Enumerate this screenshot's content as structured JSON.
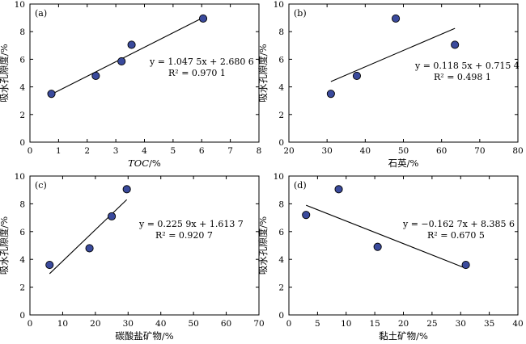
{
  "chart_data": [
    {
      "type": "scatter",
      "panel_label": "(a)",
      "xlabel": "TOC/%",
      "xlabel_italic_part": "TOC",
      "ylabel": "吸水孔隙度/%",
      "xlim": [
        0,
        8
      ],
      "ylim": [
        0,
        10
      ],
      "xticks": [
        0,
        1,
        2,
        3,
        4,
        5,
        6,
        7,
        8
      ],
      "yticks": [
        0,
        2,
        4,
        6,
        8,
        10
      ],
      "points": [
        [
          0.75,
          3.5
        ],
        [
          2.3,
          4.8
        ],
        [
          3.2,
          5.85
        ],
        [
          3.55,
          7.05
        ],
        [
          6.05,
          8.95
        ]
      ],
      "fit": {
        "slope": 1.0475,
        "intercept": 2.6806,
        "x_range": [
          0.75,
          6.05
        ]
      },
      "equation": "y = 1.047 5x + 2.680 6",
      "r2": "R² = 0.970 1"
    },
    {
      "type": "scatter",
      "panel_label": "(b)",
      "xlabel": "石英/%",
      "ylabel": "吸水孔隙度/%",
      "xlim": [
        20,
        80
      ],
      "ylim": [
        0,
        10
      ],
      "xticks": [
        20,
        30,
        40,
        50,
        60,
        70,
        80
      ],
      "yticks": [
        0,
        2,
        4,
        6,
        8,
        10
      ],
      "points": [
        [
          31,
          3.5
        ],
        [
          37.8,
          4.8
        ],
        [
          48,
          8.95
        ],
        [
          63.5,
          7.05
        ]
      ],
      "fit": {
        "slope": 0.1185,
        "intercept": 0.7154,
        "x_range": [
          31,
          63.5
        ]
      },
      "equation": "y = 0.118 5x + 0.715 4",
      "r2": "R² = 0.498 1"
    },
    {
      "type": "scatter",
      "panel_label": "(c)",
      "xlabel": "碳酸盐矿物/%",
      "ylabel": "吸水孔隙度/%",
      "xlim": [
        0,
        70
      ],
      "ylim": [
        0,
        10
      ],
      "xticks": [
        0,
        10,
        20,
        30,
        40,
        50,
        60,
        70
      ],
      "yticks": [
        0,
        2,
        4,
        6,
        8,
        10
      ],
      "points": [
        [
          6,
          3.6
        ],
        [
          18.2,
          4.8
        ],
        [
          25,
          7.1
        ],
        [
          29.6,
          9.05
        ]
      ],
      "fit": {
        "slope": 0.2259,
        "intercept": 1.6137,
        "x_range": [
          6,
          29.6
        ]
      },
      "equation": "y = 0.225 9x + 1.613 7",
      "r2": "R² = 0.920 7"
    },
    {
      "type": "scatter",
      "panel_label": "(d)",
      "xlabel": "黏土矿物/%",
      "ylabel": "吸水孔隙度/%",
      "xlim": [
        0,
        40
      ],
      "ylim": [
        0,
        10
      ],
      "xticks": [
        0,
        5,
        10,
        15,
        20,
        25,
        30,
        35,
        40
      ],
      "yticks": [
        0,
        2,
        4,
        6,
        8,
        10
      ],
      "points": [
        [
          3,
          7.2
        ],
        [
          8.7,
          9.05
        ],
        [
          15.5,
          4.9
        ],
        [
          30.9,
          3.6
        ]
      ],
      "fit": {
        "slope": -0.1627,
        "intercept": 8.3856,
        "x_range": [
          3,
          30.9
        ]
      },
      "equation": "y = −0.162 7x + 8.385 6",
      "r2": "R² = 0.670 5"
    }
  ]
}
